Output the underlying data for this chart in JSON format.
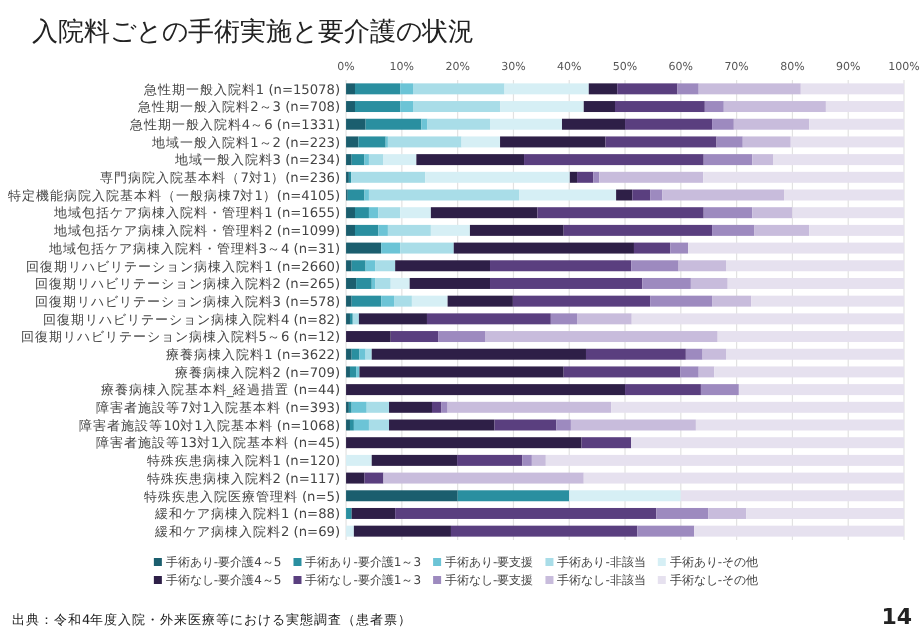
{
  "chart_data": {
    "type": "bar",
    "orientation": "horizontal",
    "stacked": true,
    "title": "入院料ごとの手術実施と要介護の状況",
    "categories": [
      "急性期一般入院料1 (n=15078)",
      "急性期一般入院料2～3 (n=708)",
      "急性期一般入院料4～6 (n=1331)",
      "地域一般入院料1～2 (n=223)",
      "地域一般入院料3 (n=234)",
      "専門病院入院基本料（7対1）(n=236)",
      "特定機能病院入院基本料（一般病棟7対1）(n=4105)",
      "地域包括ケア病棟入院料・管理料1 (n=1655)",
      "地域包括ケア病棟入院料・管理料2 (n=1099)",
      "地域包括ケア病棟入院料・管理料3～4 (n=31)",
      "回復期リハビリテーション病棟入院料1 (n=2660)",
      "回復期リハビリテーション病棟入院料2 (n=265)",
      "回復期リハビリテーション病棟入院料3 (n=578)",
      "回復期リハビリテーション病棟入院料4 (n=82)",
      "回復期リハビリテーション病棟入院料5～6 (n=12)",
      "療養病棟入院料1 (n=3622)",
      "療養病棟入院料2 (n=709)",
      "療養病棟入院基本料_経過措置 (n=44)",
      "障害者施設等7対1入院基本料 (n=393)",
      "障害者施設等10対1入院基本料 (n=1068)",
      "障害者施設等13対1入院基本料 (n=45)",
      "特殊疾患病棟入院料1 (n=120)",
      "特殊疾患病棟入院料2 (n=117)",
      "特殊疾患入院医療管理料 (n=5)",
      "緩和ケア病棟入院料1 (n=88)",
      "緩和ケア病棟入院料2 (n=69)"
    ],
    "series": [
      {
        "name": "手術あり-要介護4～5",
        "color": "#1b5e6e",
        "values": [
          1.6,
          1.6,
          3.5,
          2.2,
          1.0,
          0.5,
          0.3,
          1.6,
          1.6,
          6.3,
          1.0,
          1.8,
          1.0,
          0.7,
          0,
          1.0,
          0.7,
          0,
          0.5,
          0.7,
          0,
          0,
          0,
          20,
          0,
          0
        ]
      },
      {
        "name": "手術あり-要介護1～3",
        "color": "#2a8fa0",
        "values": [
          8.1,
          8.1,
          10.0,
          4.9,
          2.3,
          0.4,
          3.0,
          2.5,
          4.2,
          0,
          2.5,
          2.8,
          5.3,
          0.5,
          0,
          1.4,
          1.1,
          0,
          0.5,
          0.7,
          0,
          0,
          0,
          20,
          1.0,
          0
        ]
      },
      {
        "name": "手術あり-要支援",
        "color": "#6cc4d6",
        "values": [
          2.3,
          2.3,
          1.1,
          0.4,
          0.8,
          0,
          0.8,
          1.7,
          1.7,
          3.4,
          1.7,
          0.6,
          2.3,
          0,
          0,
          1.1,
          0.6,
          0,
          2.7,
          2.7,
          0,
          0,
          0,
          0,
          0,
          0
        ]
      },
      {
        "name": "手術あり-非該当",
        "color": "#a9dde8",
        "values": [
          16.4,
          15.6,
          11.2,
          13.2,
          2.6,
          13.3,
          26.9,
          3.9,
          7.7,
          9.6,
          3.6,
          2.8,
          3.2,
          1.1,
          0,
          1.1,
          null,
          0,
          4.0,
          3.6,
          0,
          0,
          0,
          0,
          0,
          0
        ]
      },
      {
        "name": "手術あり-その他",
        "color": "#d6eff5",
        "values": [
          15.1,
          15.0,
          12.9,
          6.9,
          5.9,
          25.9,
          17.4,
          5.5,
          7.0,
          0,
          0,
          3.4,
          6.4,
          0,
          0,
          0,
          0,
          0,
          0,
          0,
          0,
          4.6,
          0,
          20,
          0,
          1.4
        ]
      },
      {
        "name": "手術なし-要介護4～5",
        "color": "#2e1f47",
        "values": [
          5.1,
          5.6,
          11.3,
          18.9,
          19.3,
          1.3,
          2.9,
          19.1,
          16.8,
          32.3,
          17.0,
          14.4,
          11.7,
          12.2,
          8.0,
          38.4,
          36.6,
          50.0,
          7.7,
          18.9,
          42.2,
          15.3,
          3.3,
          0,
          7.8,
          17.4
        ]
      },
      {
        "name": "手術なし-要介護1～3",
        "color": "#5a3f7f",
        "values": [
          10.8,
          16.1,
          15.6,
          19.9,
          32.2,
          2.9,
          3.2,
          29.8,
          26.6,
          6.5,
          25.3,
          27.3,
          24.6,
          22.2,
          8.5,
          17.9,
          20.9,
          13.6,
          1.7,
          11.1,
          8.9,
          11.7,
          3.4,
          0,
          46.8,
          33.4
        ]
      },
      {
        "name": "手術なし-要支援",
        "color": "#9d8abf",
        "values": [
          3.8,
          3.4,
          3.9,
          4.7,
          8.7,
          1.1,
          2.2,
          8.7,
          7.6,
          3.2,
          8.5,
          8.7,
          11.1,
          4.7,
          8.5,
          3.0,
          3.3,
          6.8,
          1.1,
          2.6,
          0,
          1.7,
          0,
          0,
          9.3,
          10.2
        ]
      },
      {
        "name": "手術なし-非該当",
        "color": "#c8bcdc",
        "values": [
          18.3,
          18.3,
          13.5,
          8.6,
          3.8,
          18.6,
          21.8,
          7.2,
          9.8,
          0,
          8.5,
          6.6,
          7.0,
          9.8,
          41.6,
          4.2,
          2.8,
          0,
          29.3,
          22.4,
          0,
          2.5,
          35.9,
          0,
          6.8,
          0
        ]
      },
      {
        "name": "手術なし-その他",
        "color": "#e6e1ef",
        "values": [
          18.5,
          14.0,
          17.0,
          20.3,
          23.4,
          36.0,
          21.5,
          20.0,
          17.0,
          38.7,
          31.9,
          31.6,
          27.4,
          48.8,
          33.4,
          31.9,
          34.0,
          29.6,
          52.5,
          37.3,
          48.9,
          64.2,
          57.4,
          40,
          28.3,
          37.6
        ]
      }
    ],
    "xlim": [
      0,
      100
    ],
    "xticks": [
      {
        "value": 0,
        "label": "0%"
      },
      {
        "value": 10,
        "label": "10%"
      },
      {
        "value": 20,
        "label": "20%"
      },
      {
        "value": 30,
        "label": "30%"
      },
      {
        "value": 40,
        "label": "40%"
      },
      {
        "value": 50,
        "label": "50%"
      },
      {
        "value": 60,
        "label": "60%"
      },
      {
        "value": 70,
        "label": "70%"
      },
      {
        "value": 80,
        "label": "80%"
      },
      {
        "value": 90,
        "label": "90%"
      },
      {
        "value": 100,
        "label": "100%"
      }
    ],
    "grid": "x",
    "legend": "bottom",
    "annotations": [
      "出典：令和4年度入院・外来医療等における実態調査（患者票）",
      "14"
    ]
  }
}
